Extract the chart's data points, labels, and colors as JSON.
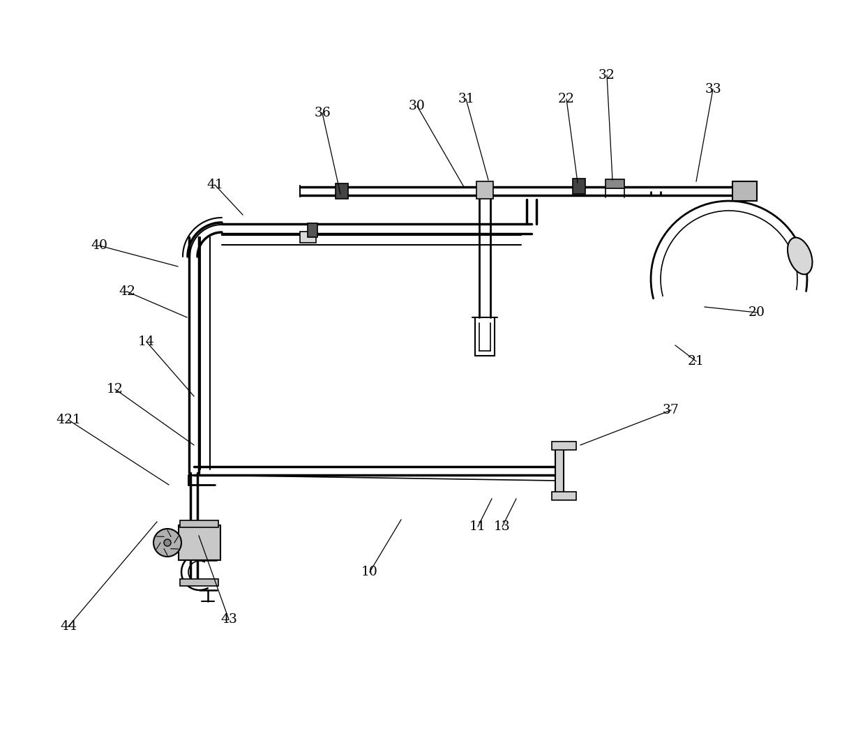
{
  "bg_color": "#ffffff",
  "lc": "#000000",
  "fig_width": 12.4,
  "fig_height": 10.58,
  "annotations": [
    [
      "10",
      530,
      820,
      575,
      745
    ],
    [
      "11",
      685,
      755,
      705,
      715
    ],
    [
      "13",
      720,
      755,
      740,
      715
    ],
    [
      "12",
      165,
      558,
      278,
      638
    ],
    [
      "14",
      210,
      490,
      278,
      568
    ],
    [
      "20",
      1085,
      448,
      1010,
      440
    ],
    [
      "21",
      998,
      518,
      968,
      495
    ],
    [
      "22",
      812,
      142,
      828,
      262
    ],
    [
      "30",
      598,
      152,
      665,
      268
    ],
    [
      "31",
      668,
      142,
      700,
      258
    ],
    [
      "32",
      870,
      108,
      878,
      258
    ],
    [
      "33",
      1022,
      128,
      998,
      260
    ],
    [
      "36",
      462,
      162,
      488,
      278
    ],
    [
      "37",
      962,
      588,
      832,
      638
    ],
    [
      "40",
      142,
      352,
      255,
      382
    ],
    [
      "41",
      308,
      265,
      348,
      308
    ],
    [
      "42",
      182,
      418,
      268,
      455
    ],
    [
      "421",
      98,
      602,
      242,
      695
    ],
    [
      "43",
      328,
      888,
      285,
      768
    ],
    [
      "44",
      98,
      898,
      225,
      748
    ]
  ]
}
